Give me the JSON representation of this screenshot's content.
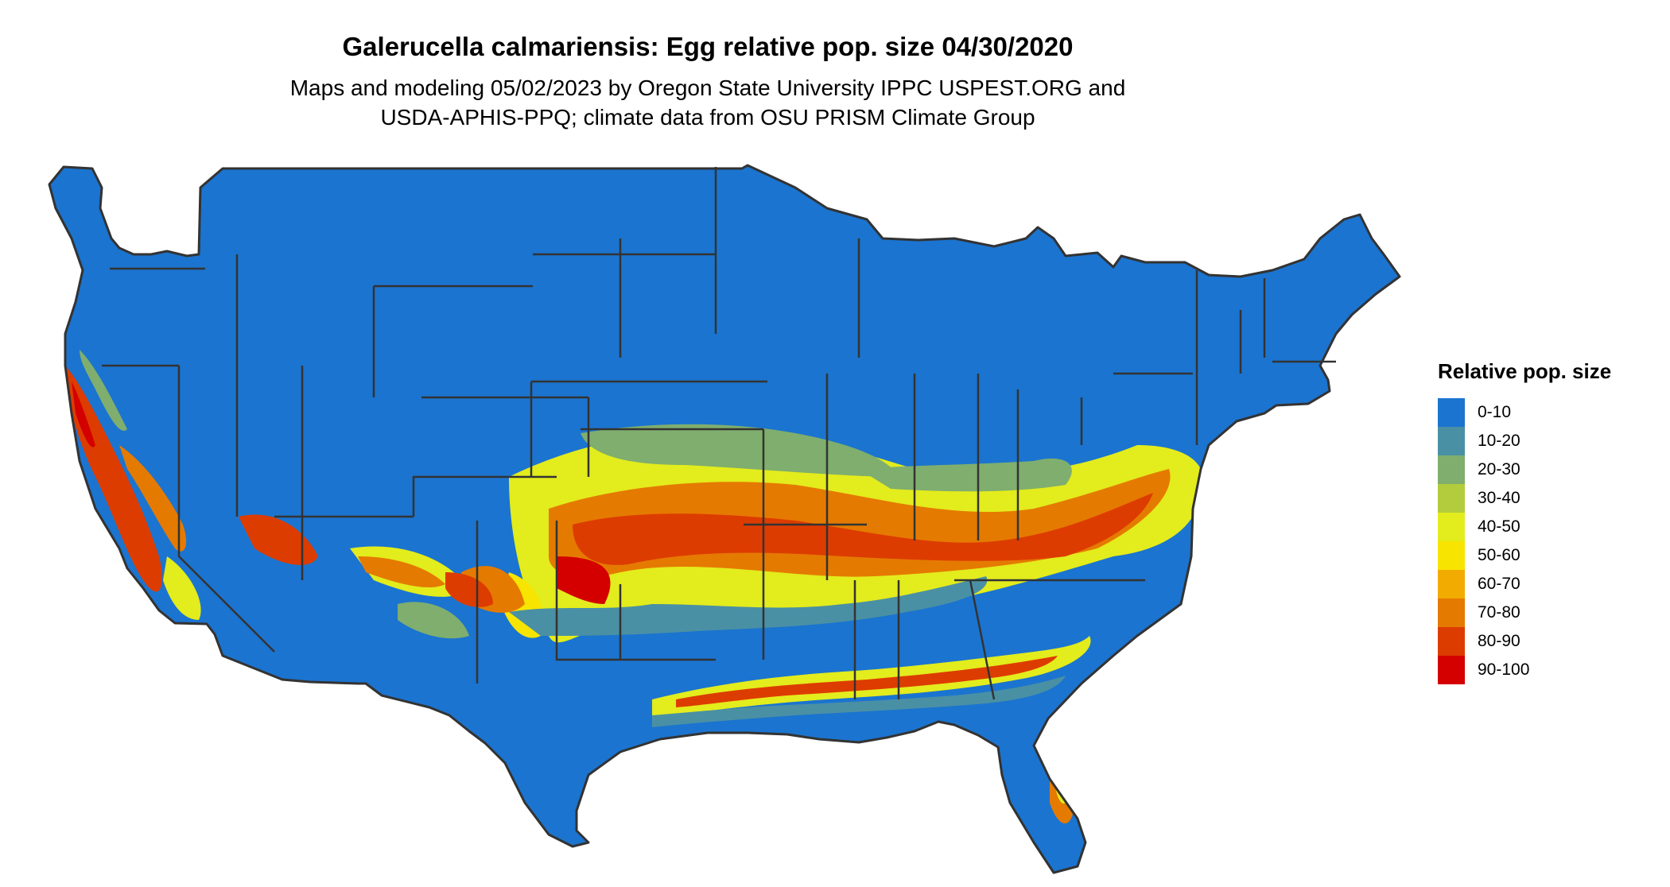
{
  "map": {
    "title": "Galerucella calmariensis: Egg relative pop. size 04/30/2020",
    "subtitle_line1": "Maps and modeling 05/02/2023 by Oregon State University IPPC USPEST.ORG and",
    "subtitle_line2": "USDA-APHIS-PPQ; climate data from OSU PRISM Climate Group",
    "region": "contiguous United States",
    "background_color": "#1b74cf",
    "border_color": "#333333"
  },
  "legend": {
    "title": "Relative pop. size",
    "items": [
      {
        "label": "0-10",
        "color": "#1b74cf"
      },
      {
        "label": "10-20",
        "color": "#4a90a4"
      },
      {
        "label": "20-30",
        "color": "#7fae6e"
      },
      {
        "label": "30-40",
        "color": "#b3cc3d"
      },
      {
        "label": "40-50",
        "color": "#e3ec1c"
      },
      {
        "label": "50-60",
        "color": "#f7e400"
      },
      {
        "label": "60-70",
        "color": "#f2ab00"
      },
      {
        "label": "70-80",
        "color": "#e57a00"
      },
      {
        "label": "80-90",
        "color": "#dd3c00"
      },
      {
        "label": "90-100",
        "color": "#d40000"
      }
    ]
  }
}
